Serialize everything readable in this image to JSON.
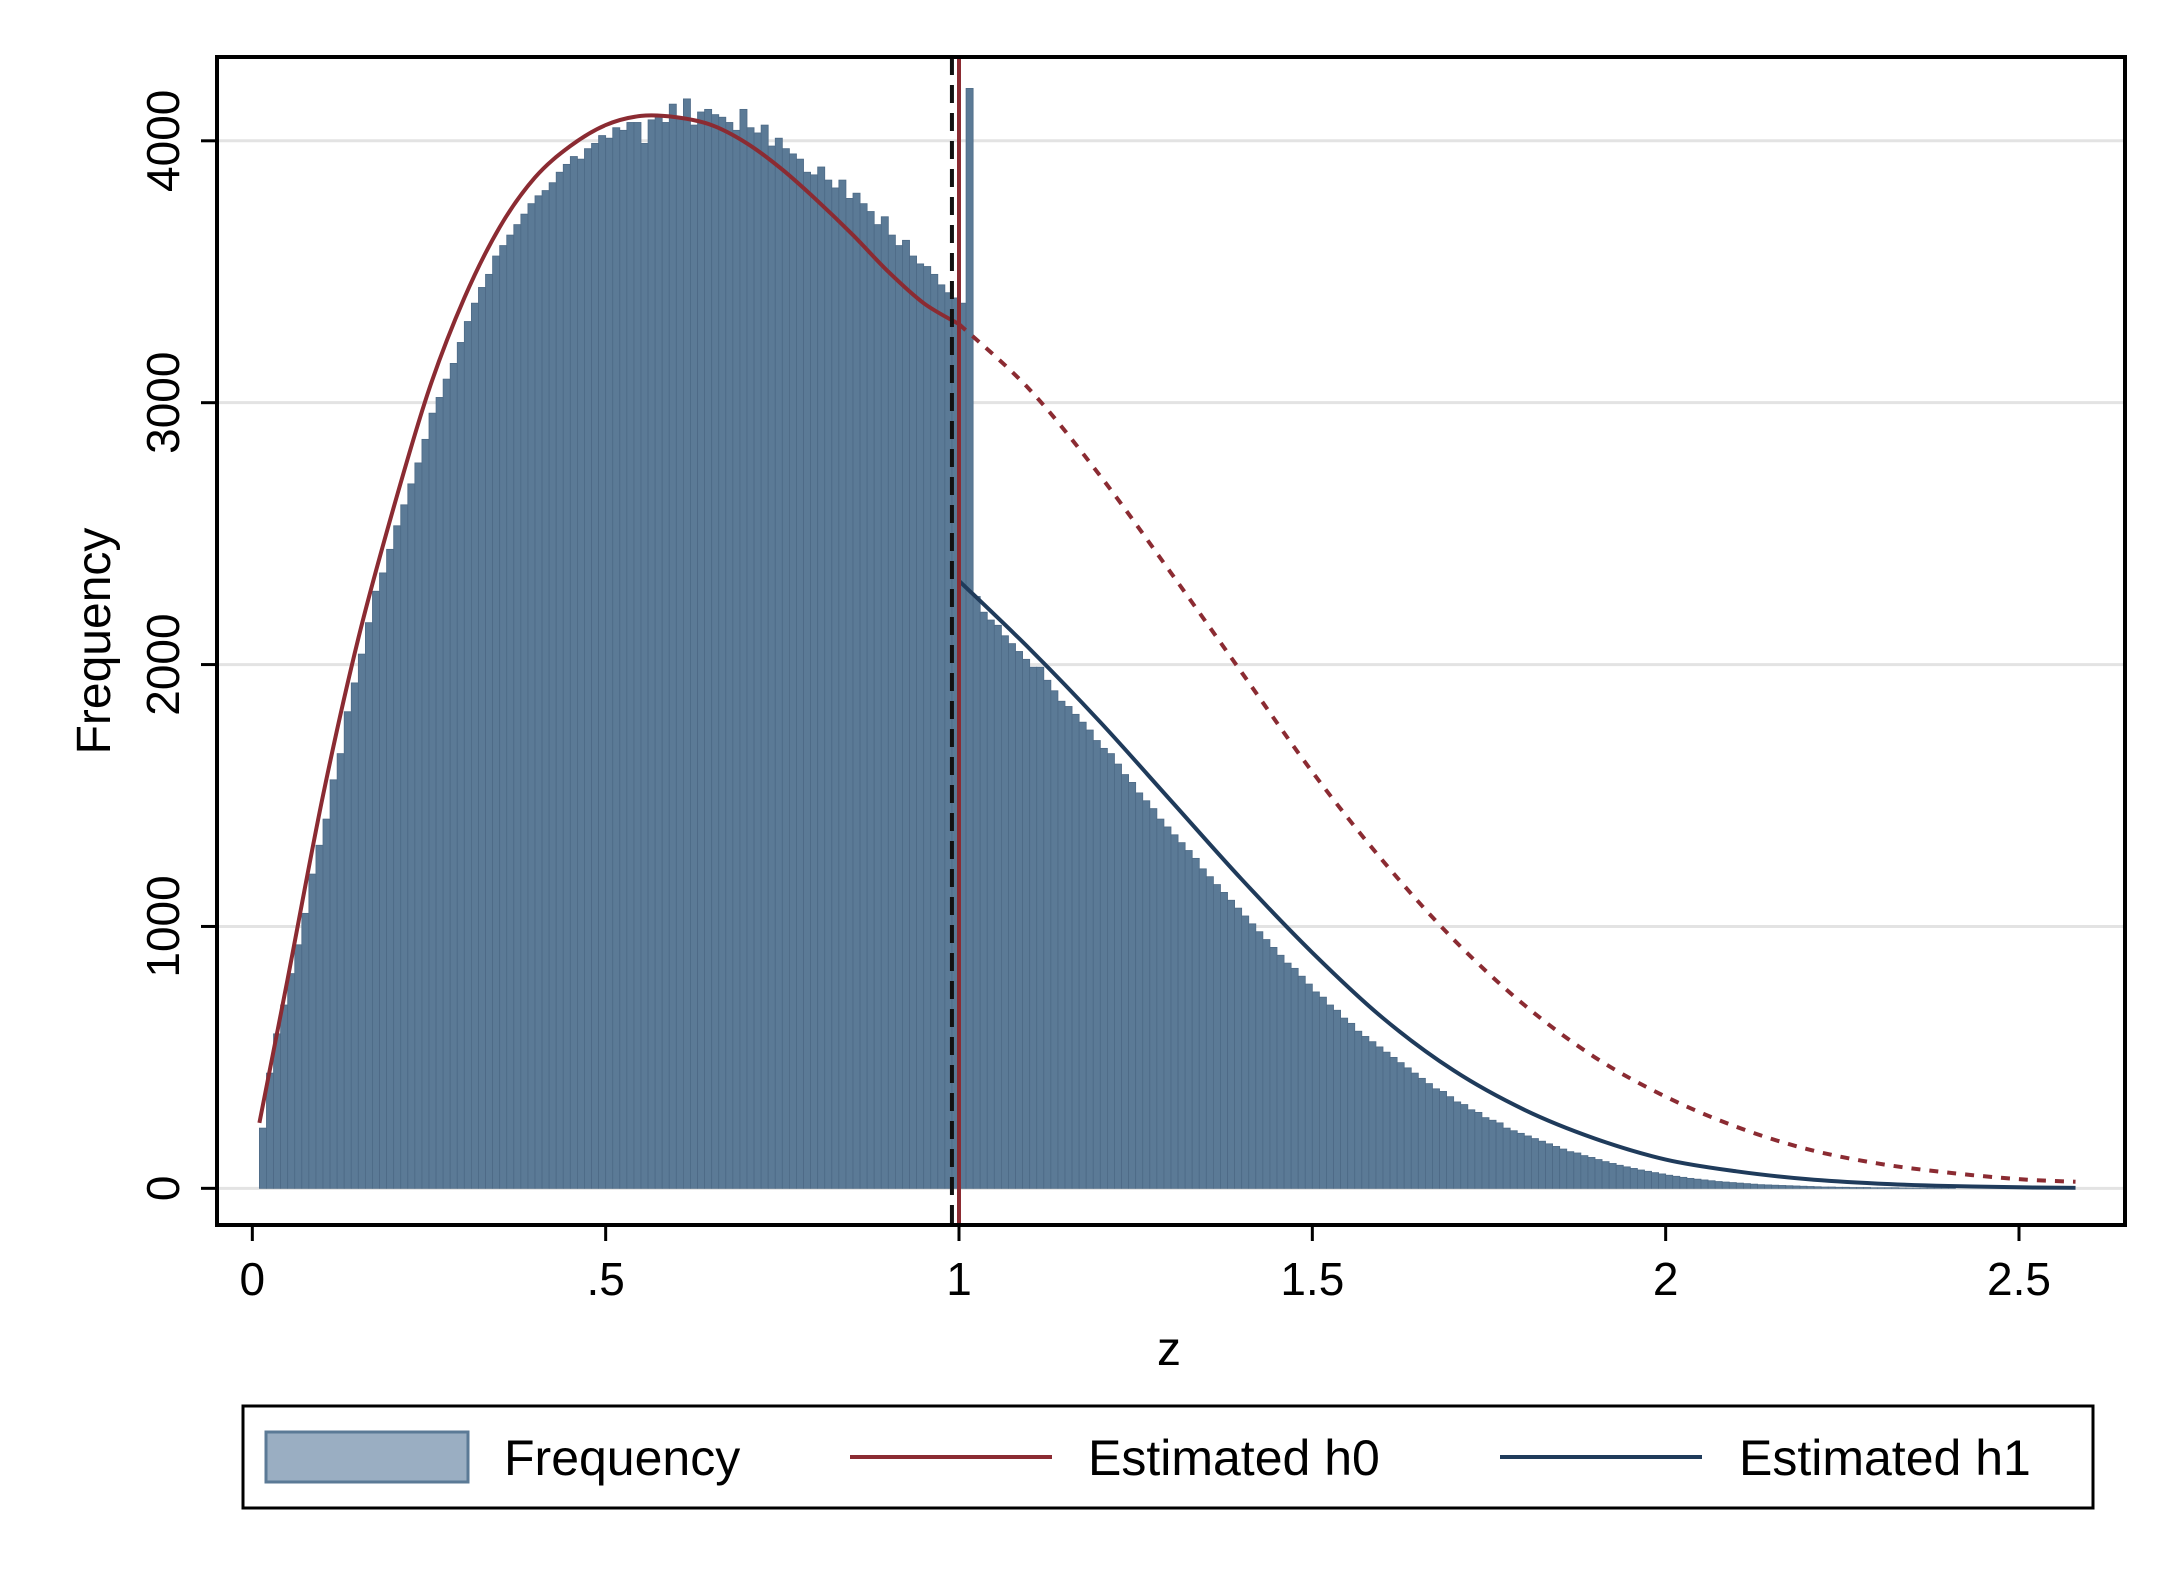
{
  "chart_data": {
    "type": "bar",
    "title": "",
    "xlabel": "z",
    "ylabel": "Frequency",
    "xlim": [
      -0.05,
      2.65
    ],
    "ylim": [
      -140,
      4320
    ],
    "xticks": [
      {
        "value": 0,
        "label": "0"
      },
      {
        "value": 0.5,
        "label": ".5"
      },
      {
        "value": 1,
        "label": "1"
      },
      {
        "value": 1.5,
        "label": "1.5"
      },
      {
        "value": 2,
        "label": "2"
      },
      {
        "value": 2.5,
        "label": "2.5"
      }
    ],
    "yticks": [
      {
        "value": 0,
        "label": "0"
      },
      {
        "value": 1000,
        "label": "1000"
      },
      {
        "value": 2000,
        "label": "2000"
      },
      {
        "value": 3000,
        "label": "3000"
      },
      {
        "value": 4000,
        "label": "4000"
      }
    ],
    "grid": "horizontal",
    "legend_position": "bottom",
    "histogram": {
      "name": "Frequency",
      "bin_width": 0.01,
      "bin_start": 0.01,
      "values": [
        230,
        440,
        590,
        700,
        820,
        930,
        1050,
        1200,
        1310,
        1410,
        1560,
        1660,
        1820,
        1930,
        2040,
        2160,
        2280,
        2350,
        2440,
        2530,
        2610,
        2690,
        2770,
        2860,
        2960,
        3020,
        3090,
        3150,
        3230,
        3310,
        3380,
        3440,
        3490,
        3560,
        3600,
        3640,
        3680,
        3720,
        3760,
        3790,
        3810,
        3840,
        3880,
        3910,
        3940,
        3930,
        3970,
        3990,
        4020,
        4010,
        4050,
        4040,
        4070,
        4070,
        3990,
        4080,
        4100,
        4070,
        4140,
        4090,
        4160,
        4060,
        4110,
        4120,
        4100,
        4090,
        4070,
        4040,
        4120,
        4050,
        4030,
        4060,
        3980,
        4010,
        3970,
        3950,
        3930,
        3880,
        3870,
        3900,
        3850,
        3820,
        3850,
        3780,
        3800,
        3760,
        3730,
        3680,
        3710,
        3640,
        3600,
        3620,
        3560,
        3530,
        3520,
        3490,
        3450,
        3420,
        3400,
        3380,
        4200,
        2260,
        2200,
        2170,
        2150,
        2110,
        2080,
        2050,
        2020,
        1990,
        1990,
        1940,
        1900,
        1860,
        1840,
        1810,
        1780,
        1750,
        1710,
        1680,
        1660,
        1620,
        1580,
        1550,
        1510,
        1480,
        1450,
        1410,
        1380,
        1350,
        1320,
        1290,
        1260,
        1220,
        1190,
        1160,
        1130,
        1100,
        1070,
        1040,
        1010,
        980,
        950,
        920,
        890,
        860,
        840,
        810,
        780,
        750,
        730,
        700,
        680,
        650,
        630,
        600,
        580,
        560,
        540,
        520,
        500,
        480,
        460,
        440,
        420,
        400,
        380,
        370,
        350,
        330,
        320,
        300,
        290,
        270,
        260,
        250,
        230,
        220,
        210,
        200,
        190,
        180,
        170,
        160,
        150,
        140,
        135,
        125,
        118,
        110,
        102,
        95,
        88,
        82,
        76,
        70,
        65,
        60,
        55,
        50,
        46,
        42,
        38,
        35,
        32,
        29,
        26,
        24,
        22,
        20,
        18,
        16,
        14,
        13,
        12,
        11,
        10,
        9,
        8,
        7,
        6,
        5,
        5,
        4,
        4,
        3,
        3,
        3,
        2,
        2,
        2,
        2,
        1,
        1,
        1,
        1,
        1,
        1,
        1,
        1,
        0,
        0,
        0,
        0,
        0,
        0,
        0,
        0,
        0,
        0,
        0,
        0,
        0,
        0,
        0,
        0,
        0,
        0,
        0,
        0,
        0,
        0,
        0,
        0,
        0,
        0
      ],
      "color": "#5b7a96"
    },
    "series": [
      {
        "name": "Estimated h0",
        "color": "#8b2b32",
        "style": "solid",
        "x": [
          0.01,
          0.05,
          0.1,
          0.15,
          0.2,
          0.25,
          0.3,
          0.35,
          0.4,
          0.45,
          0.5,
          0.55,
          0.6,
          0.65,
          0.7,
          0.75,
          0.8,
          0.85,
          0.9,
          0.95,
          1.0
        ],
        "y": [
          250,
          800,
          1500,
          2100,
          2600,
          3050,
          3400,
          3670,
          3860,
          3980,
          4060,
          4095,
          4090,
          4060,
          3990,
          3890,
          3770,
          3640,
          3500,
          3380,
          3300
        ]
      },
      {
        "name": "Estimated h0 (counterfactual)",
        "color": "#8b2b32",
        "style": "dashed",
        "x": [
          1.0,
          1.1,
          1.2,
          1.3,
          1.4,
          1.5,
          1.6,
          1.7,
          1.8,
          1.9,
          2.0,
          2.1,
          2.2,
          2.3,
          2.4,
          2.5,
          2.58
        ],
        "y": [
          3300,
          3050,
          2720,
          2350,
          1970,
          1590,
          1250,
          950,
          700,
          500,
          350,
          235,
          150,
          95,
          60,
          35,
          25
        ]
      },
      {
        "name": "Estimated h1",
        "color": "#1f3b5b",
        "style": "solid",
        "x": [
          1.0,
          1.1,
          1.2,
          1.3,
          1.4,
          1.5,
          1.6,
          1.7,
          1.8,
          1.9,
          2.0,
          2.1,
          2.2,
          2.3,
          2.4,
          2.5,
          2.58
        ],
        "y": [
          2320,
          2060,
          1780,
          1480,
          1180,
          900,
          650,
          450,
          300,
          190,
          110,
          65,
          35,
          18,
          9,
          4,
          2
        ]
      }
    ],
    "vlines": [
      {
        "x": 0.99,
        "color": "#111111",
        "style": "dashed"
      },
      {
        "x": 1.0,
        "color": "#8b2b32",
        "style": "solid"
      }
    ]
  },
  "legend": {
    "items": [
      {
        "label": "Frequency"
      },
      {
        "label": "Estimated h0"
      },
      {
        "label": "Estimated h1"
      }
    ]
  }
}
